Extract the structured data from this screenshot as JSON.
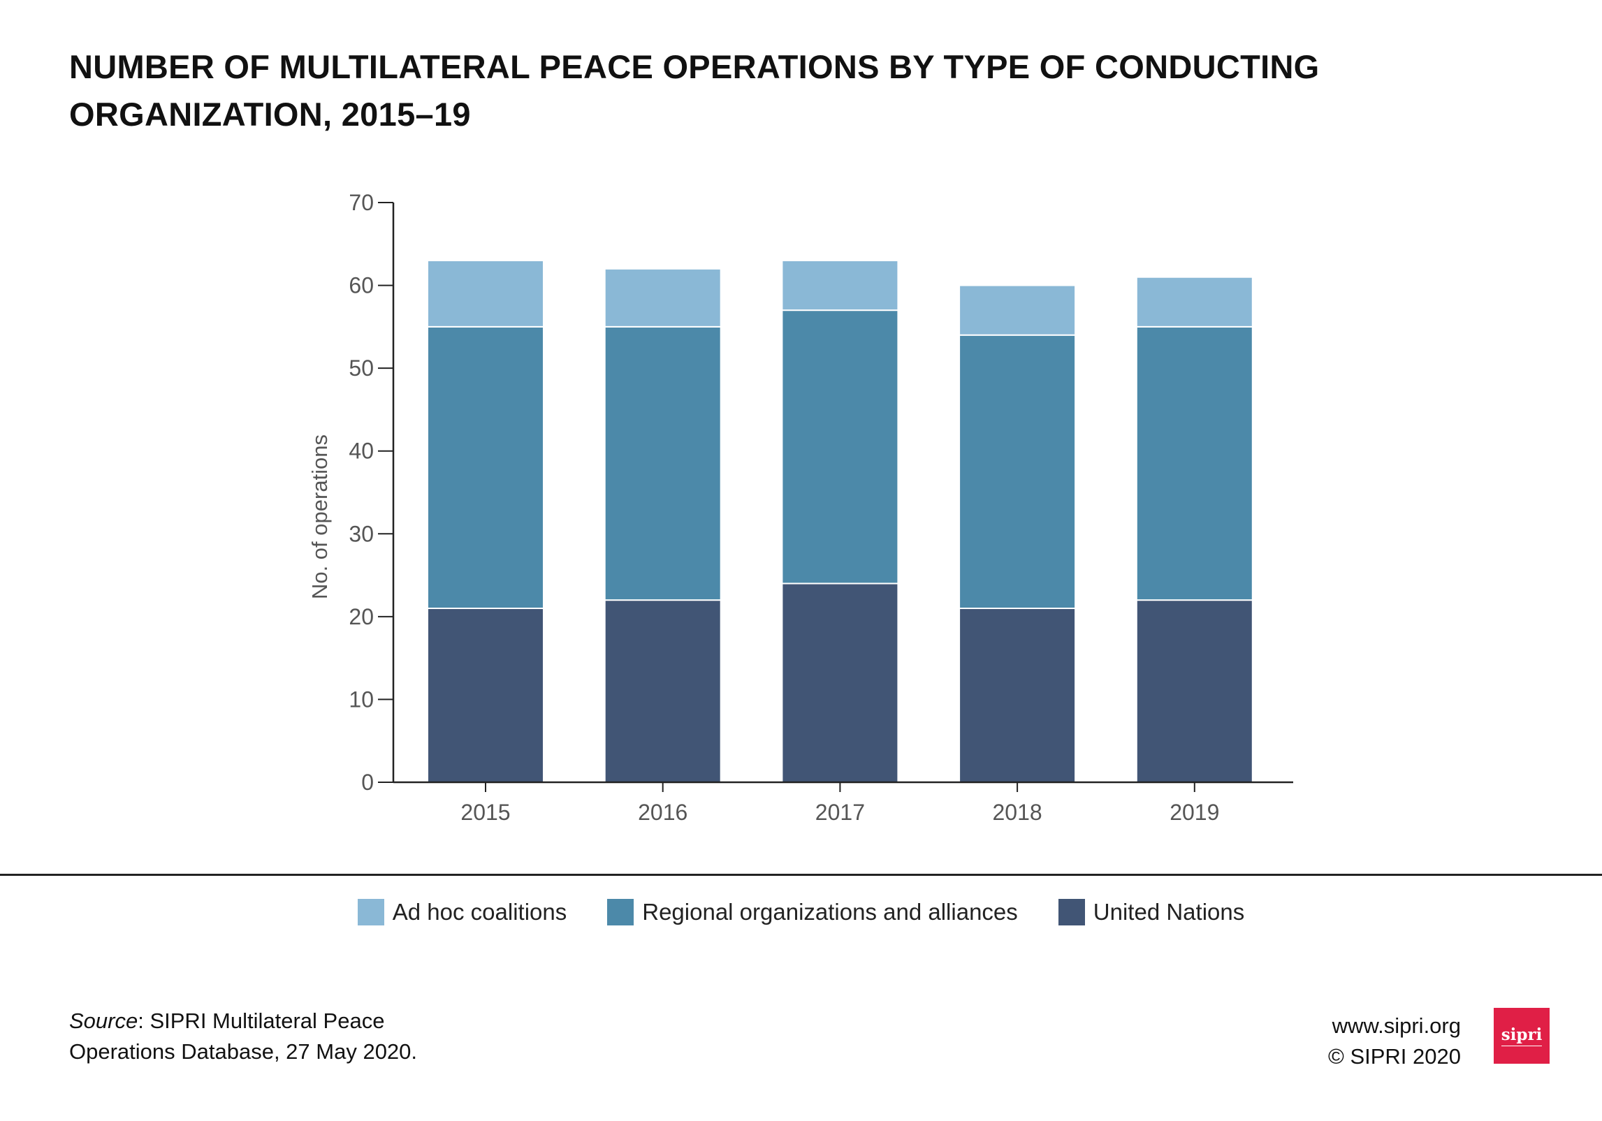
{
  "chart_data": {
    "type": "bar",
    "stacked": true,
    "title": "NUMBER OF MULTILATERAL PEACE OPERATIONS BY TYPE OF CONDUCTING ORGANIZATION, 2015–19",
    "xlabel": "",
    "ylabel": "No. of operations",
    "ylim": [
      0,
      70
    ],
    "yticks": [
      0,
      10,
      20,
      30,
      40,
      50,
      60,
      70
    ],
    "categories": [
      "2015",
      "2016",
      "2017",
      "2018",
      "2019"
    ],
    "grid": false,
    "legend_position": "bottom",
    "series": [
      {
        "name": "United Nations",
        "color": "#415575",
        "values": [
          21,
          22,
          24,
          21,
          22
        ]
      },
      {
        "name": "Regional organizations and alliances",
        "color": "#4c89a9",
        "values": [
          34,
          33,
          33,
          33,
          33
        ]
      },
      {
        "name": "Ad hoc coalitions",
        "color": "#8ab8d6",
        "values": [
          8,
          7,
          6,
          6,
          6
        ]
      }
    ],
    "legend_order": [
      2,
      1,
      0
    ]
  },
  "source": {
    "label": "Source",
    "text": ": SIPRI Multilateral Peace Operations Database, 27 May 2020."
  },
  "credits": {
    "url": "www.sipri.org",
    "copyright": "© SIPRI 2020"
  },
  "logo": {
    "text": "sipri",
    "color": "#e01f46"
  }
}
